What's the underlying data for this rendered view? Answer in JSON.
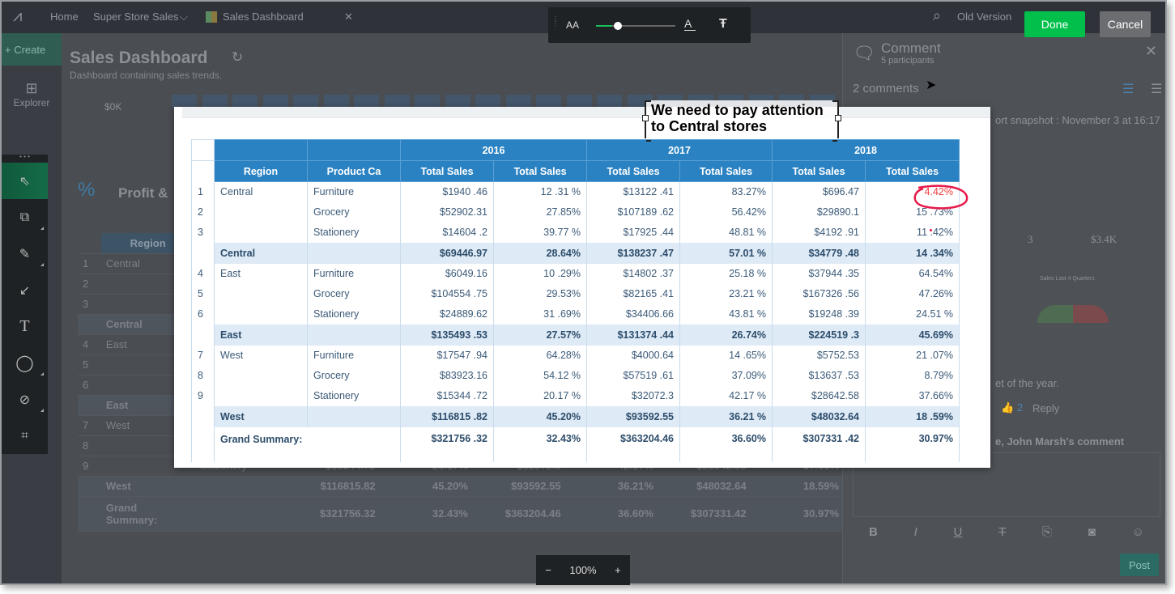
{
  "topbar": {
    "home": "Home",
    "workspace": "Super Store Sales",
    "tab": "Sales Dashboard",
    "old_version": "Old Version"
  },
  "leftnav": {
    "create": "Create",
    "explorer": "Explorer"
  },
  "dashboard": {
    "title": "Sales Dashboard",
    "subtitle": "Dashboard containing sales trends.",
    "axis_label": "$0K",
    "widget_title": "Profit &"
  },
  "comment_panel": {
    "title": "Comment",
    "participants": "5 participants",
    "count": "2 comments",
    "snapshot": "ort snapshot : November 3 at 16:17",
    "kpi1": "3",
    "kpi2": "$3.4K",
    "legend": "Sales Last 4 Quarters",
    "text": "et of the year.",
    "likes": "2",
    "reply": "Reply",
    "reply_to": "e, John Marsh's comment",
    "post": "Post"
  },
  "actions": {
    "done": "Done",
    "cancel": "Cancel"
  },
  "text_toolbar": {
    "font_size_icon": "AA",
    "font_icon": "A",
    "slider_value": 0.2
  },
  "zoom": {
    "value": "100%"
  },
  "colors": {
    "header": "#2a82c2",
    "subtotal": "#deeaf6",
    "done": "#00c04b",
    "annotation": "#e8194a"
  },
  "annotation": {
    "callout_text": "We need to pay attention to Central stores",
    "highlighted_value": "4.42%"
  },
  "table": {
    "years": [
      "2016",
      "2017",
      "2018"
    ],
    "columns": [
      "Region",
      "Product Ca",
      "Total Sales",
      "Total Sales",
      "Total Sales",
      "Total Sales",
      "Total Sales",
      "Total Sales"
    ],
    "rows": [
      {
        "type": "data",
        "n": "1",
        "region": "Central",
        "product": "Furniture",
        "v": [
          "$1940 .46",
          "12 .31 %",
          "$13122 .41",
          "83.27%",
          "$696.47",
          "4.42%"
        ]
      },
      {
        "type": "data",
        "n": "2",
        "region": "",
        "product": "Grocery",
        "v": [
          "$52902.31",
          "27.85%",
          "$107189 .62",
          "56.42%",
          "$29890.1",
          "15 .73%"
        ]
      },
      {
        "type": "data",
        "n": "3",
        "region": "",
        "product": "Stationery",
        "v": [
          "$14604 .2",
          "39.77 %",
          "$17925 .44",
          "48.81 %",
          "$4192 .91",
          "11 .42%"
        ]
      },
      {
        "type": "sub",
        "n": "",
        "region": "Central",
        "product": "",
        "v": [
          "$69446.97",
          "28.64%",
          "$138237 .47",
          "57.01 %",
          "$34779 .48",
          "14 .34%"
        ]
      },
      {
        "type": "data",
        "n": "4",
        "region": "East",
        "product": "Furniture",
        "v": [
          "$6049.16",
          "10 .29%",
          "$14802 .37",
          "25.18 %",
          "$37944 .35",
          "64.54%"
        ]
      },
      {
        "type": "data",
        "n": "5",
        "region": "",
        "product": "Grocery",
        "v": [
          "$104554 .75",
          "29.53%",
          "$82165 .41",
          "23.21 %",
          "$167326 .56",
          "47.26%"
        ]
      },
      {
        "type": "data",
        "n": "6",
        "region": "",
        "product": "Stationery",
        "v": [
          "$24889.62",
          "31 .69%",
          "$34406.66",
          "43.81 %",
          "$19248 .39",
          "24.51 %"
        ]
      },
      {
        "type": "sub",
        "n": "",
        "region": "East",
        "product": "",
        "v": [
          "$135493 .53",
          "27.57%",
          "$131374 .44",
          "26.74%",
          "$224519 .3",
          "45.69%"
        ]
      },
      {
        "type": "data",
        "n": "7",
        "region": "West",
        "product": "Furniture",
        "v": [
          "$17547 .94",
          "64.28%",
          "$4000.64",
          "14 .65%",
          "$5752.53",
          "21 .07%"
        ]
      },
      {
        "type": "data",
        "n": "8",
        "region": "",
        "product": "Grocery",
        "v": [
          "$83923.16",
          "54.12 %",
          "$57519 .61",
          "37.09%",
          "$13637 .53",
          "8.79%"
        ]
      },
      {
        "type": "data",
        "n": "9",
        "region": "",
        "product": "Stationery",
        "v": [
          "$15344 .72",
          "20.17 %",
          "$32072.3",
          "42.17 %",
          "$28642.58",
          "37.66%"
        ]
      },
      {
        "type": "sub",
        "n": "",
        "region": "West",
        "product": "",
        "v": [
          "$116815 .82",
          "45.20%",
          "$93592.55",
          "36.21 %",
          "$48032.64",
          "18 .59%"
        ]
      },
      {
        "type": "grand",
        "n": "",
        "region": "Grand Summary:",
        "product": "",
        "v": [
          "$321756 .32",
          "32.43%",
          "$363204.46",
          "36.60%",
          "$307331 .42",
          "30.97%"
        ]
      }
    ]
  }
}
